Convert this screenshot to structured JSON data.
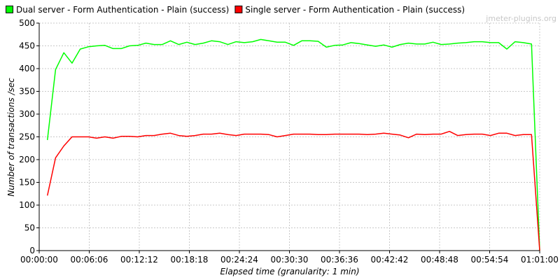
{
  "watermark": "jmeter-plugins.org",
  "chart_data": {
    "type": "line",
    "xlabel": "Elapsed time (granularity: 1 min)",
    "ylabel": "Number of transactions /sec",
    "ylim": [
      0,
      500
    ],
    "xlim_minutes": [
      0,
      61
    ],
    "y_ticks": [
      0,
      50,
      100,
      150,
      200,
      250,
      300,
      350,
      400,
      450,
      500
    ],
    "x_tick_minutes": [
      0,
      6.1,
      12.2,
      18.3,
      24.4,
      30.5,
      36.6,
      42.7,
      48.8,
      54.9,
      61
    ],
    "x_tick_labels": [
      "00:00:00",
      "00:06:06",
      "00:12:12",
      "00:18:18",
      "00:24:24",
      "00:30:30",
      "00:36:36",
      "00:42:42",
      "00:48:48",
      "00:54:54",
      "01:01:00"
    ],
    "grid": true,
    "legend_position": "top",
    "x_minutes": [
      1,
      2,
      3,
      4,
      5,
      6,
      7,
      8,
      9,
      10,
      11,
      12,
      13,
      14,
      15,
      16,
      17,
      18,
      19,
      20,
      21,
      22,
      23,
      24,
      25,
      26,
      27,
      28,
      29,
      30,
      31,
      32,
      33,
      34,
      35,
      36,
      37,
      38,
      39,
      40,
      41,
      42,
      43,
      44,
      45,
      46,
      47,
      48,
      49,
      50,
      51,
      52,
      53,
      54,
      55,
      56,
      57,
      58,
      59,
      60,
      61
    ],
    "series": [
      {
        "name": "Dual server - Form Authentication - Plain (success)",
        "color": "#00ff00",
        "values": [
          243,
          398,
          435,
          412,
          443,
          448,
          450,
          451,
          444,
          444,
          450,
          451,
          456,
          453,
          453,
          461,
          453,
          458,
          453,
          456,
          461,
          459,
          453,
          459,
          457,
          459,
          464,
          461,
          458,
          458,
          451,
          461,
          461,
          460,
          447,
          451,
          452,
          457,
          455,
          452,
          449,
          452,
          447,
          453,
          456,
          454,
          454,
          458,
          453,
          454,
          456,
          457,
          459,
          459,
          457,
          457,
          443,
          459,
          457,
          454,
          0
        ]
      },
      {
        "name": "Single server - Form Authentication - Plain (success)",
        "color": "#ff0000",
        "values": [
          121,
          204,
          230,
          250,
          250,
          250,
          247,
          250,
          247,
          251,
          251,
          250,
          253,
          253,
          256,
          258,
          253,
          251,
          253,
          256,
          256,
          258,
          255,
          253,
          256,
          256,
          256,
          255,
          250,
          253,
          256,
          256,
          256,
          255,
          255,
          256,
          256,
          256,
          256,
          255,
          256,
          258,
          256,
          254,
          248,
          256,
          255,
          256,
          256,
          262,
          253,
          255,
          256,
          256,
          253,
          258,
          258,
          253,
          255,
          255,
          0
        ]
      }
    ]
  }
}
